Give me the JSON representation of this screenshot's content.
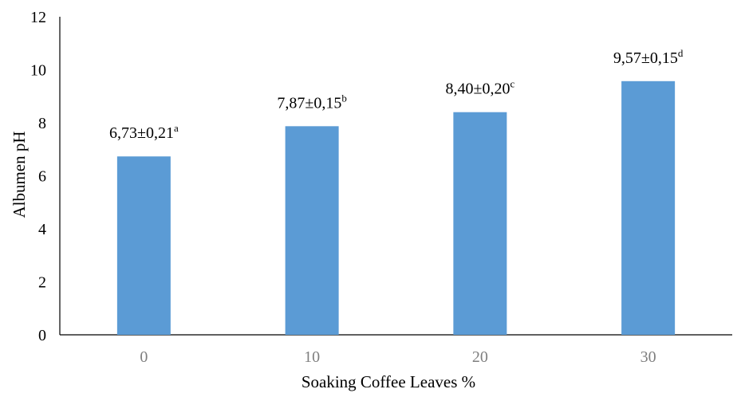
{
  "chart_data": {
    "type": "bar",
    "categories": [
      "0",
      "10",
      "20",
      "30"
    ],
    "values": [
      6.73,
      7.87,
      8.4,
      9.57
    ],
    "data_labels": [
      {
        "text": "6,73±0,21",
        "sup": "a"
      },
      {
        "text": "7,87±0,15",
        "sup": "b"
      },
      {
        "text": "8,40±0,20",
        "sup": "c"
      },
      {
        "text": "9,57±0,15",
        "sup": "d"
      }
    ],
    "title": "",
    "xlabel": "Soaking Coffee Leaves %",
    "ylabel": "Albumen pH",
    "ylim": [
      0,
      12
    ],
    "yticks": [
      "0",
      "2",
      "4",
      "6",
      "8",
      "10",
      "12"
    ],
    "grid": false,
    "legend": "none",
    "bar_color": "#5b9bd5"
  }
}
